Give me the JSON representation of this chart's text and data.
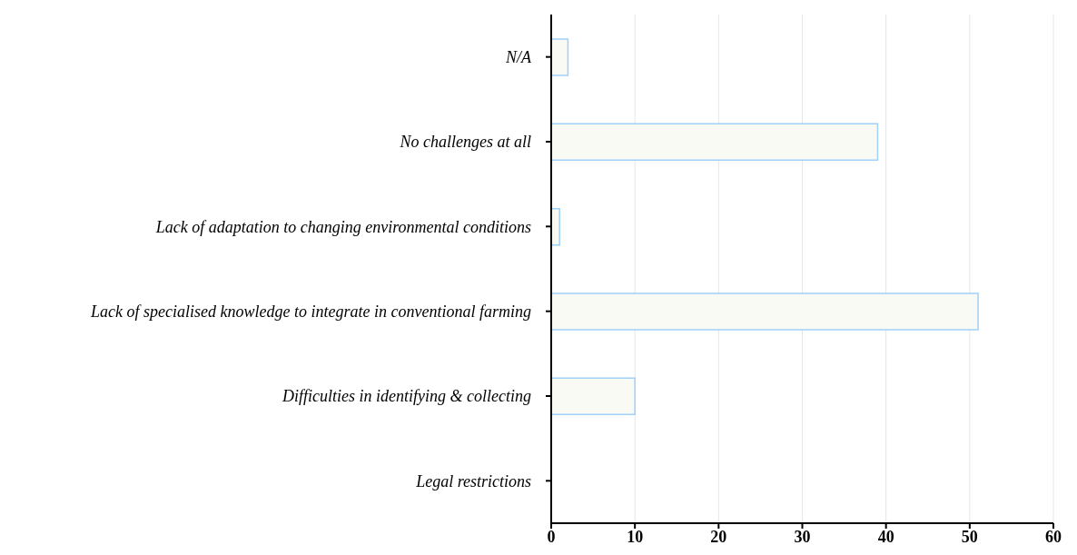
{
  "chart_data": {
    "type": "bar",
    "orientation": "horizontal",
    "categories": [
      "N/A",
      "No challenges at all",
      "Lack of adaptation to changing environmental conditions",
      "Lack of specialised knowledge to integrate in conventional farming",
      "Difficulties in identifying & collecting",
      "Legal restrictions"
    ],
    "values": [
      2,
      39,
      1,
      51,
      10,
      0
    ],
    "color": "#fafaf5",
    "xlim": [
      0,
      60
    ],
    "xticks": [
      0,
      10,
      20,
      30,
      40,
      50,
      60
    ],
    "grid": "x"
  }
}
